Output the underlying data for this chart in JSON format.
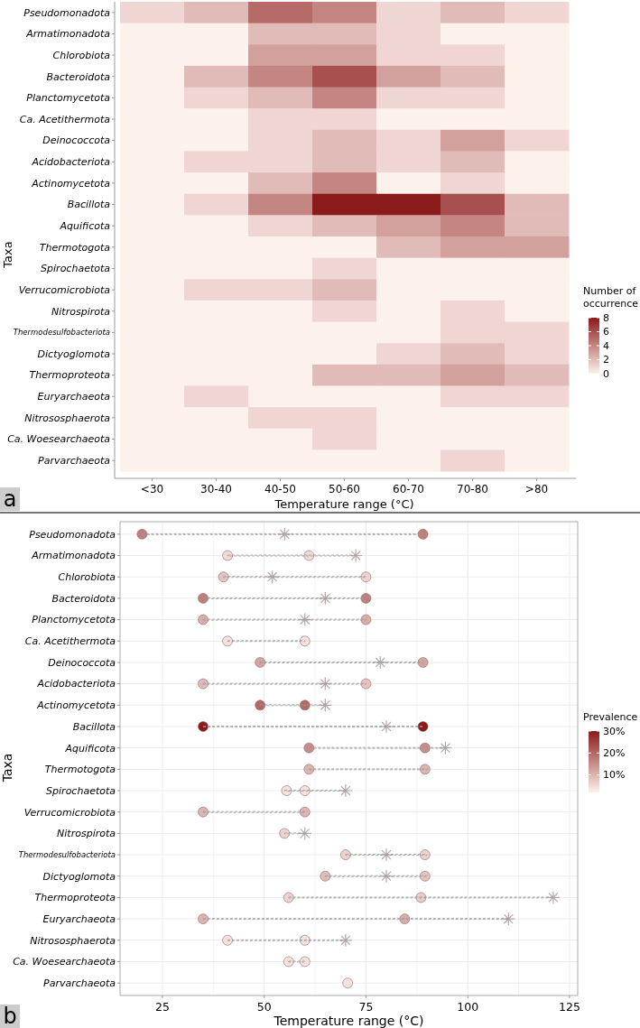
{
  "chart_data": [
    {
      "type": "heatmap",
      "xlabel": "Temperature range (°C)",
      "ylabel": "Taxa",
      "clabel": "Number of occurrence",
      "annotations": [
        "a"
      ],
      "categories": [
        "<30",
        "30-40",
        "40-50",
        "50-60",
        "60-70",
        "70-80",
        ">80"
      ],
      "y_categories": [
        "Pseudomonadota",
        "Armatimonadota",
        "Chlorobiota",
        "Bacteroidota",
        "Planctomycetota",
        "Ca. Acetithermota",
        "Deinococcota",
        "Acidobacteriota",
        "Actinomycetota",
        "Bacillota",
        "Aquificota",
        "Thermotogota",
        "Spirochaetota",
        "Verrucomicrobiota",
        "Nitrospirota",
        "Thermodesulfobacteriota",
        "Dictyoglomota",
        "Thermoproteota",
        "Euryarchaeota",
        "Nitrososphaerota",
        "Ca. Woesearchaeota",
        "Parvarchaeota"
      ],
      "cells": [
        [
          1,
          2,
          5,
          4,
          1,
          2,
          1
        ],
        [
          0,
          0,
          2,
          2,
          1,
          0,
          0
        ],
        [
          0,
          0,
          3,
          3,
          1,
          1,
          0
        ],
        [
          0,
          2,
          4,
          6,
          3,
          2,
          0
        ],
        [
          0,
          1,
          2,
          4,
          1,
          1,
          0
        ],
        [
          0,
          0,
          1,
          1,
          0,
          0,
          0
        ],
        [
          0,
          0,
          1,
          2,
          1,
          3,
          1
        ],
        [
          0,
          1,
          1,
          2,
          1,
          2,
          0
        ],
        [
          0,
          0,
          2,
          4,
          0,
          1,
          0
        ],
        [
          0,
          1,
          4,
          8,
          8,
          6,
          2
        ],
        [
          0,
          0,
          1,
          2,
          3,
          4,
          2
        ],
        [
          0,
          0,
          0,
          0,
          2,
          3,
          3
        ],
        [
          0,
          0,
          0,
          1,
          0,
          0,
          0
        ],
        [
          0,
          1,
          1,
          2,
          0,
          0,
          0
        ],
        [
          0,
          0,
          0,
          1,
          0,
          1,
          0
        ],
        [
          0,
          0,
          0,
          0,
          0,
          1,
          1
        ],
        [
          0,
          0,
          0,
          0,
          1,
          2,
          1
        ],
        [
          0,
          0,
          0,
          2,
          2,
          3,
          2
        ],
        [
          0,
          1,
          0,
          0,
          0,
          1,
          1
        ],
        [
          0,
          0,
          1,
          1,
          0,
          0,
          0
        ],
        [
          0,
          0,
          0,
          1,
          0,
          0,
          0
        ],
        [
          0,
          0,
          0,
          0,
          0,
          1,
          0
        ]
      ],
      "clim": [
        0,
        8
      ],
      "cticks": [
        0,
        2,
        4,
        6,
        8
      ]
    },
    {
      "type": "scatter",
      "orientation": "horizontal",
      "xlabel": "Temperature range (°C)",
      "ylabel": "Taxa",
      "clabel": "Prevalence",
      "annotations": [
        "b"
      ],
      "grid": true,
      "categories": [
        "Pseudomonadota",
        "Armatimonadota",
        "Chlorobiota",
        "Bacteroidota",
        "Planctomycetota",
        "Ca. Acetithermota",
        "Deinococcota",
        "Acidobacteriota",
        "Actinomycetota",
        "Bacillota",
        "Aquificota",
        "Thermotogota",
        "Spirochaetota",
        "Verrucomicrobiota",
        "Nitrospirota",
        "Thermodesulfobacteriota",
        "Dictyoglomota",
        "Thermoproteota",
        "Euryarchaeota",
        "Nitrososphaerota",
        "Ca. Woesearchaeota",
        "Parvarchaeota"
      ],
      "xlim": [
        14.6,
        127
      ],
      "xticks": [
        25,
        50,
        75,
        100,
        125
      ],
      "clim": [
        2,
        30
      ],
      "cticks": [
        {
          "value": 10,
          "label": "10%"
        },
        {
          "value": 20,
          "label": "20%"
        },
        {
          "value": 30,
          "label": "30%"
        }
      ],
      "series": [
        {
          "type": "bar",
          "color": "#9a9a9a",
          "line_style": "dashed",
          "base": [
            20,
            41,
            40,
            35,
            35,
            41,
            49,
            35,
            49,
            35,
            61,
            61,
            55,
            35,
            55,
            70,
            65,
            56,
            35,
            41,
            56,
            null
          ],
          "values": [
            69,
            31.5,
            35,
            40,
            40,
            19,
            40,
            40,
            16,
            54,
            33.5,
            29,
            15,
            25,
            5,
            20,
            25,
            65,
            75,
            29,
            4,
            null
          ]
        },
        {
          "type": "scatter",
          "marker": "cross",
          "color": "#b8a8a8",
          "x": [
            "Pseudomonadota",
            "Armatimonadota",
            "Chlorobiota",
            "Bacteroidota",
            "Planctomycetota",
            "Deinococcota",
            "Acidobacteriota",
            "Actinomycetota",
            "Bacillota",
            "Aquificota",
            "Spirochaetota",
            "Nitrospirota",
            "Thermodesulfobacteriota",
            "Dictyoglomota",
            "Thermoproteota",
            "Euryarchaeota",
            "Nitrososphaerota"
          ],
          "values": [
            55,
            72.5,
            52,
            65,
            60,
            78.5,
            65,
            65,
            80,
            94.5,
            70,
            60,
            80,
            80,
            121,
            110,
            70
          ]
        },
        {
          "type": "scatter",
          "marker": "circle",
          "x": [
            "Pseudomonadota",
            "Pseudomonadota",
            "Armatimonadota",
            "Armatimonadota",
            "Chlorobiota",
            "Chlorobiota",
            "Bacteroidota",
            "Bacteroidota",
            "Planctomycetota",
            "Planctomycetota",
            "Ca. Acetithermota",
            "Ca. Acetithermota",
            "Deinococcota",
            "Deinococcota",
            "Acidobacteriota",
            "Acidobacteriota",
            "Actinomycetota",
            "Actinomycetota",
            "Bacillota",
            "Bacillota",
            "Aquificota",
            "Aquificota",
            "Thermotogota",
            "Thermotogota",
            "Spirochaetota",
            "Spirochaetota",
            "Verrucomicrobiota",
            "Verrucomicrobiota",
            "Nitrospirota",
            "Thermodesulfobacteriota",
            "Thermodesulfobacteriota",
            "Dictyoglomota",
            "Dictyoglomota",
            "Thermoproteota",
            "Thermoproteota",
            "Euryarchaeota",
            "Euryarchaeota",
            "Nitrososphaerota",
            "Nitrososphaerota",
            "Ca. Woesearchaeota",
            "Ca. Woesearchaeota",
            "Parvarchaeota"
          ],
          "values": [
            20,
            89,
            41,
            61,
            40,
            75,
            35,
            75,
            35,
            75,
            41,
            60,
            49,
            89,
            35,
            75,
            49,
            60,
            35,
            89,
            61,
            89.5,
            61,
            89.5,
            55.5,
            60,
            35,
            60,
            55,
            70,
            89.5,
            65,
            89.5,
            56,
            88.5,
            35,
            84.5,
            41,
            60,
            56,
            60,
            70.5
          ],
          "colors": [
            "#c07e7c",
            "#c07e7c",
            "#f1dad6",
            "#f1dad6",
            "#e5c3bf",
            "#edd2ce",
            "#c07e7c",
            "#c07e7c",
            "#d8aca9",
            "#d8aca9",
            "#f5e2dd",
            "#f5e2dd",
            "#d4a4a1",
            "#d4a4a1",
            "#e0bbb8",
            "#e5c3bf",
            "#b46765",
            "#b46765",
            "#8b1a1a",
            "#8b1a1a",
            "#c88d8b",
            "#c88d8b",
            "#dcb4b0",
            "#dcb4b0",
            "#f5e2dd",
            "#f5e2dd",
            "#dcb4b0",
            "#dcb4b0",
            "#edd2ce",
            "#edd2ce",
            "#edd2ce",
            "#e0bbb8",
            "#e5c3bf",
            "#edd2ce",
            "#e9cbc7",
            "#dcb4b0",
            "#d8aca9",
            "#f5e2dd",
            "#f5e2dd",
            "#f5e2dd",
            "#f5e2dd",
            "#f5e2dd"
          ]
        }
      ]
    }
  ]
}
